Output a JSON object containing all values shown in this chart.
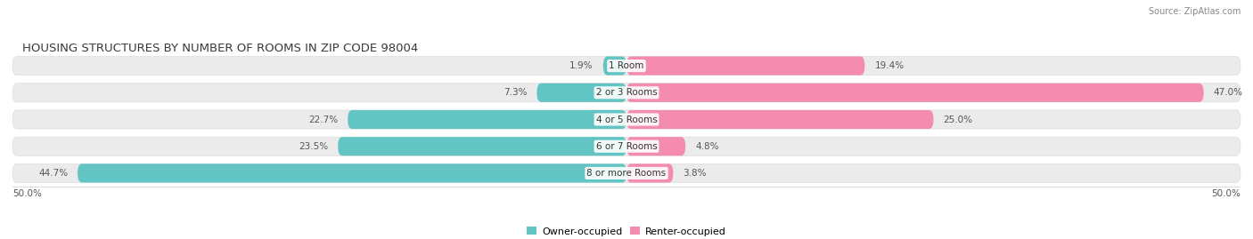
{
  "title": "HOUSING STRUCTURES BY NUMBER OF ROOMS IN ZIP CODE 98004",
  "source": "Source: ZipAtlas.com",
  "categories": [
    "1 Room",
    "2 or 3 Rooms",
    "4 or 5 Rooms",
    "6 or 7 Rooms",
    "8 or more Rooms"
  ],
  "owner_values": [
    1.9,
    7.3,
    22.7,
    23.5,
    44.7
  ],
  "renter_values": [
    19.4,
    47.0,
    25.0,
    4.8,
    3.8
  ],
  "owner_color": "#62c4c3",
  "renter_color": "#f48cb0",
  "bar_bg_color": "#ebebeb",
  "bar_border_color": "#d8d8d8",
  "label_color": "#555555",
  "title_color": "#3a3a3a",
  "source_color": "#888888",
  "axis_max": 50.0,
  "legend_owner": "Owner-occupied",
  "legend_renter": "Renter-occupied",
  "x_tick_left": "50.0%",
  "x_tick_right": "50.0%",
  "title_fontsize": 9.5,
  "source_fontsize": 7,
  "bar_label_fontsize": 7.5,
  "cat_label_fontsize": 7.5,
  "tick_fontsize": 7.5,
  "legend_fontsize": 8
}
